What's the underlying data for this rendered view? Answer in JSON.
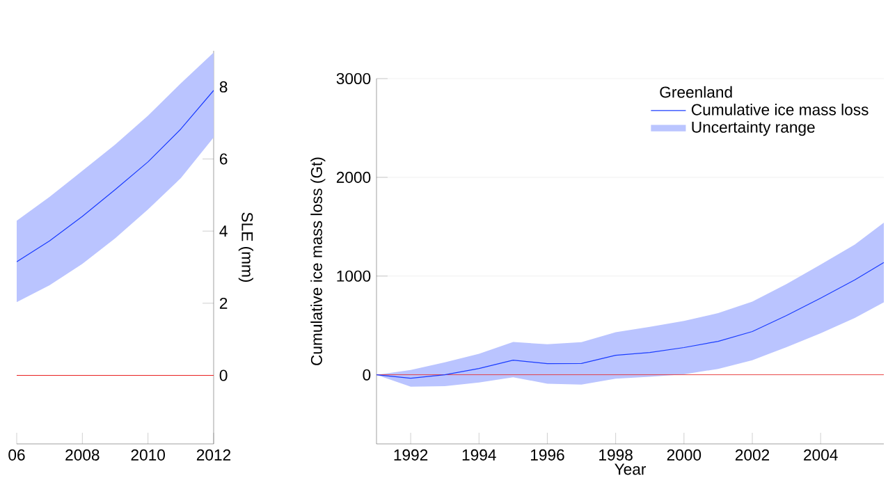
{
  "chart_data": [
    {
      "type": "line",
      "ylabel": "SLE (mm)",
      "xlim": [
        2006,
        2012
      ],
      "xticks": [
        {
          "value": 2006,
          "label": "06"
        },
        2008,
        2010,
        2012
      ],
      "ylim": [
        -1.9,
        9
      ],
      "yticks": [
        0,
        2,
        4,
        6,
        8
      ],
      "grid": false,
      "legend": false,
      "x": [
        2006,
        2007,
        2008,
        2009,
        2010,
        2011,
        2012
      ],
      "series": [
        {
          "type": "line",
          "color": "#1a3cff",
          "values": [
            3.15,
            3.73,
            4.41,
            5.15,
            5.92,
            6.83,
            7.9
          ],
          "lower": [
            2.03,
            2.5,
            3.09,
            3.8,
            4.6,
            5.47,
            6.6
          ],
          "upper": [
            4.29,
            4.95,
            5.67,
            6.4,
            7.2,
            8.1,
            8.95
          ]
        }
      ],
      "ref_lines": [
        {
          "axis": "y",
          "value": 0,
          "color": "#e82020"
        }
      ]
    },
    {
      "type": "line",
      "xlabel": "Year",
      "ylabel": "Cumulative ice mass loss (Gt)",
      "legend_title": "Greenland",
      "annotations": [
        "Uncertainty range"
      ],
      "xlim": [
        1991,
        2005.85
      ],
      "xticks": [
        1992,
        1994,
        1996,
        1998,
        2000,
        2002,
        2004
      ],
      "ylim": [
        -700,
        3000
      ],
      "yticks": [
        0,
        1000,
        2000,
        3000
      ],
      "grid": "y",
      "legend": "top right",
      "x": [
        1991,
        1992,
        1993,
        1994,
        1995,
        1996,
        1997,
        1998,
        1999,
        2000,
        2001,
        2002,
        2003,
        2004,
        2005,
        2005.85
      ],
      "series": [
        {
          "name": "Cumulative ice mass loss",
          "type": "line",
          "color": "#1a3cff",
          "values": [
            0,
            -35,
            0,
            64,
            148,
            113,
            115,
            198,
            226,
            276,
            339,
            438,
            600,
            777,
            961,
            1138
          ],
          "lower": [
            0,
            -120,
            -115,
            -78,
            -25,
            -90,
            -100,
            -40,
            -20,
            5,
            60,
            148,
            280,
            420,
            575,
            735
          ],
          "upper": [
            0,
            49,
            127,
            212,
            332,
            310,
            330,
            431,
            485,
            545,
            625,
            742,
            920,
            1117,
            1320,
            1541
          ]
        }
      ],
      "ref_lines": [
        {
          "axis": "y",
          "value": 0,
          "color": "#e82020"
        }
      ]
    }
  ]
}
